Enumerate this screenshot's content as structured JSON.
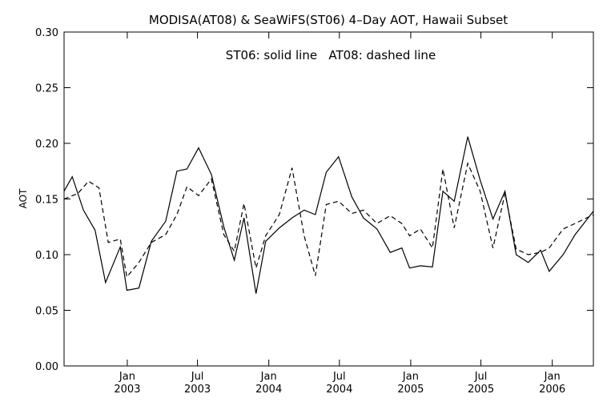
{
  "chart_data": {
    "type": "line",
    "title": "MODISA(AT08) & SeaWiFS(ST06) 4–Day AOT, Hawaii Subset",
    "annotation": "ST06: solid line   AT08: dashed line",
    "ylabel": "AOT",
    "xlabel": "",
    "ylim": [
      0.0,
      0.3
    ],
    "xlim": [
      "2002-07-22",
      "2006-04-17"
    ],
    "grid": false,
    "legend": "none",
    "y_ticks": [
      "0.00",
      "0.05",
      "0.10",
      "0.15",
      "0.20",
      "0.25",
      "0.30"
    ],
    "x_ticks": [
      {
        "month": "Jan",
        "year": "2003",
        "date": "2003-01-01"
      },
      {
        "month": "Jul",
        "year": "2003",
        "date": "2003-07-01"
      },
      {
        "month": "Jan",
        "year": "2004",
        "date": "2004-01-01"
      },
      {
        "month": "Jul",
        "year": "2004",
        "date": "2004-07-01"
      },
      {
        "month": "Jan",
        "year": "2005",
        "date": "2005-01-01"
      },
      {
        "month": "Jul",
        "year": "2005",
        "date": "2005-07-01"
      },
      {
        "month": "Jan",
        "year": "2006",
        "date": "2006-01-01"
      }
    ],
    "series": [
      {
        "style": "solid",
        "points": [
          [
            "2002-07-22",
            0.157
          ],
          [
            "2002-08-12",
            0.17
          ],
          [
            "2002-09-10",
            0.14
          ],
          [
            "2002-10-10",
            0.122
          ],
          [
            "2002-11-06",
            0.075
          ],
          [
            "2002-12-14",
            0.107
          ],
          [
            "2002-12-31",
            0.068
          ],
          [
            "2003-01-31",
            0.07
          ],
          [
            "2003-03-04",
            0.112
          ],
          [
            "2003-04-10",
            0.13
          ],
          [
            "2003-05-09",
            0.175
          ],
          [
            "2003-06-04",
            0.177
          ],
          [
            "2003-07-04",
            0.196
          ],
          [
            "2003-08-06",
            0.172
          ],
          [
            "2003-09-07",
            0.125
          ],
          [
            "2003-10-04",
            0.095
          ],
          [
            "2003-10-29",
            0.133
          ],
          [
            "2003-11-29",
            0.065
          ],
          [
            "2003-12-24",
            0.112
          ],
          [
            "2004-01-28",
            0.124
          ],
          [
            "2004-03-01",
            0.133
          ],
          [
            "2004-04-01",
            0.14
          ],
          [
            "2004-04-30",
            0.136
          ],
          [
            "2004-05-28",
            0.174
          ],
          [
            "2004-06-29",
            0.188
          ],
          [
            "2004-08-02",
            0.152
          ],
          [
            "2004-09-01",
            0.133
          ],
          [
            "2004-10-06",
            0.123
          ],
          [
            "2004-11-09",
            0.102
          ],
          [
            "2004-12-09",
            0.106
          ],
          [
            "2004-12-29",
            0.088
          ],
          [
            "2005-01-26",
            0.09
          ],
          [
            "2005-02-26",
            0.089
          ],
          [
            "2005-03-25",
            0.157
          ],
          [
            "2005-04-23",
            0.148
          ],
          [
            "2005-05-28",
            0.206
          ],
          [
            "2005-06-29",
            0.167
          ],
          [
            "2005-08-01",
            0.132
          ],
          [
            "2005-09-01",
            0.157
          ],
          [
            "2005-09-30",
            0.1
          ],
          [
            "2005-10-31",
            0.093
          ],
          [
            "2005-12-02",
            0.104
          ],
          [
            "2005-12-24",
            0.085
          ],
          [
            "2006-01-29",
            0.1
          ],
          [
            "2006-03-01",
            0.118
          ],
          [
            "2006-04-17",
            0.139
          ]
        ]
      },
      {
        "style": "dashed",
        "points": [
          [
            "2002-07-22",
            0.15
          ],
          [
            "2002-08-27",
            0.155
          ],
          [
            "2002-09-23",
            0.166
          ],
          [
            "2002-10-20",
            0.16
          ],
          [
            "2002-11-13",
            0.111
          ],
          [
            "2002-12-14",
            0.114
          ],
          [
            "2002-12-31",
            0.08
          ],
          [
            "2003-01-31",
            0.093
          ],
          [
            "2003-03-04",
            0.111
          ],
          [
            "2003-04-10",
            0.118
          ],
          [
            "2003-05-09",
            0.136
          ],
          [
            "2003-06-04",
            0.161
          ],
          [
            "2003-07-04",
            0.153
          ],
          [
            "2003-08-06",
            0.168
          ],
          [
            "2003-09-07",
            0.118
          ],
          [
            "2003-10-04",
            0.103
          ],
          [
            "2003-10-29",
            0.146
          ],
          [
            "2003-11-29",
            0.088
          ],
          [
            "2003-12-24",
            0.117
          ],
          [
            "2004-01-28",
            0.136
          ],
          [
            "2004-03-01",
            0.178
          ],
          [
            "2004-04-01",
            0.117
          ],
          [
            "2004-04-30",
            0.081
          ],
          [
            "2004-05-28",
            0.145
          ],
          [
            "2004-06-29",
            0.148
          ],
          [
            "2004-08-02",
            0.137
          ],
          [
            "2004-09-01",
            0.14
          ],
          [
            "2004-10-06",
            0.128
          ],
          [
            "2004-11-09",
            0.135
          ],
          [
            "2004-12-09",
            0.128
          ],
          [
            "2004-12-29",
            0.117
          ],
          [
            "2005-01-26",
            0.123
          ],
          [
            "2005-02-26",
            0.106
          ],
          [
            "2005-03-25",
            0.177
          ],
          [
            "2005-04-23",
            0.124
          ],
          [
            "2005-05-28",
            0.182
          ],
          [
            "2005-06-29",
            0.157
          ],
          [
            "2005-08-01",
            0.106
          ],
          [
            "2005-09-01",
            0.155
          ],
          [
            "2005-09-30",
            0.105
          ],
          [
            "2005-10-31",
            0.1
          ],
          [
            "2005-12-02",
            0.102
          ],
          [
            "2005-12-24",
            0.106
          ],
          [
            "2006-01-29",
            0.123
          ],
          [
            "2006-03-01",
            0.128
          ],
          [
            "2006-04-17",
            0.136
          ]
        ]
      }
    ]
  }
}
